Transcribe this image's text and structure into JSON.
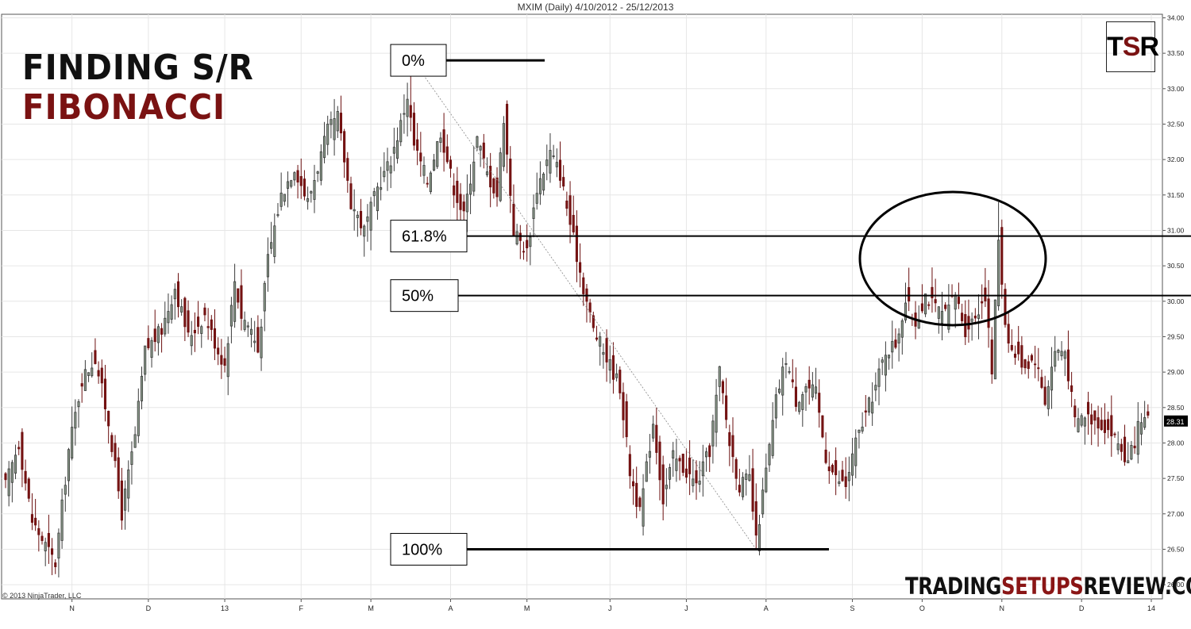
{
  "header": {
    "title": "MXIM (Daily)  4/10/2012 - 25/12/2013"
  },
  "overlay": {
    "title_line1": "FINDING S/R",
    "title_line2": "FIBONACCI",
    "logo": {
      "t": "T",
      "s": "S",
      "r": "R"
    },
    "brand": {
      "part1": "TRADING",
      "part2": "SETUPS",
      "part3": "REVIEW.COM"
    },
    "copyright": "© 2013 NinjaTrader, LLC"
  },
  "colors": {
    "up": "#3b3b3b",
    "up_fill": "#8a9a8a",
    "down": "#6b0f0f",
    "down_fill": "#7a1414",
    "grid": "#e6e6e6",
    "accent": "#7a1212"
  },
  "chart_data": {
    "type": "candlestick",
    "title": "MXIM (Daily)  4/10/2012 - 25/12/2013",
    "ylim": [
      25.8,
      34.05
    ],
    "y_ticks": [
      "26.00",
      "26.50",
      "27.00",
      "27.50",
      "28.00",
      "28.50",
      "29.00",
      "29.50",
      "30.00",
      "30.50",
      "31.00",
      "31.50",
      "32.00",
      "32.50",
      "33.00",
      "33.50",
      "34.00"
    ],
    "x_ticks": [
      {
        "label": "N",
        "idx": 20
      },
      {
        "label": "D",
        "idx": 43
      },
      {
        "label": "13",
        "idx": 66
      },
      {
        "label": "F",
        "idx": 89
      },
      {
        "label": "M",
        "idx": 110
      },
      {
        "label": "A",
        "idx": 134
      },
      {
        "label": "M",
        "idx": 157
      },
      {
        "label": "J",
        "idx": 182
      },
      {
        "label": "J",
        "idx": 205
      },
      {
        "label": "A",
        "idx": 229
      },
      {
        "label": "S",
        "idx": 255
      },
      {
        "label": "O",
        "idx": 276
      },
      {
        "label": "N",
        "idx": 300
      },
      {
        "label": "D",
        "idx": 324
      },
      {
        "label": "14",
        "idx": 345
      }
    ],
    "last_price": "28.31",
    "close_anchors": [
      [
        0,
        27.4
      ],
      [
        4,
        28.0
      ],
      [
        8,
        26.9
      ],
      [
        15,
        26.3
      ],
      [
        19,
        27.9
      ],
      [
        23,
        28.9
      ],
      [
        27,
        29.2
      ],
      [
        31,
        28.3
      ],
      [
        35,
        27.0
      ],
      [
        39,
        28.1
      ],
      [
        42,
        29.3
      ],
      [
        47,
        29.6
      ],
      [
        51,
        30.2
      ],
      [
        55,
        29.5
      ],
      [
        60,
        29.8
      ],
      [
        64,
        29.3
      ],
      [
        66,
        29.1
      ],
      [
        69,
        30.3
      ],
      [
        71,
        29.8
      ],
      [
        74,
        29.6
      ],
      [
        76,
        29.3
      ],
      [
        79,
        30.6
      ],
      [
        83,
        31.5
      ],
      [
        87,
        31.9
      ],
      [
        91,
        31.4
      ],
      [
        94,
        31.9
      ],
      [
        97,
        32.4
      ],
      [
        100,
        32.6
      ],
      [
        104,
        31.4
      ],
      [
        108,
        31.0
      ],
      [
        112,
        31.6
      ],
      [
        116,
        32.0
      ],
      [
        119,
        32.5
      ],
      [
        121,
        32.9
      ],
      [
        123,
        32.2
      ],
      [
        127,
        31.7
      ],
      [
        131,
        32.4
      ],
      [
        135,
        31.6
      ],
      [
        138,
        31.2
      ],
      [
        142,
        32.3
      ],
      [
        145,
        31.8
      ],
      [
        148,
        31.5
      ],
      [
        150,
        32.6
      ],
      [
        153,
        31.0
      ],
      [
        157,
        30.7
      ],
      [
        160,
        31.6
      ],
      [
        164,
        32.1
      ],
      [
        167,
        31.8
      ],
      [
        170,
        31.1
      ],
      [
        174,
        30.2
      ],
      [
        177,
        29.6
      ],
      [
        181,
        29.2
      ],
      [
        185,
        28.8
      ],
      [
        188,
        27.6
      ],
      [
        191,
        27.0
      ],
      [
        195,
        28.3
      ],
      [
        198,
        27.2
      ],
      [
        201,
        27.8
      ],
      [
        205,
        27.6
      ],
      [
        208,
        27.4
      ],
      [
        212,
        27.9
      ],
      [
        215,
        29.0
      ],
      [
        218,
        28.0
      ],
      [
        221,
        27.4
      ],
      [
        224,
        27.5
      ],
      [
        226,
        26.6
      ],
      [
        229,
        27.6
      ],
      [
        232,
        28.6
      ],
      [
        235,
        29.2
      ],
      [
        238,
        28.6
      ],
      [
        241,
        28.8
      ],
      [
        244,
        28.7
      ],
      [
        247,
        27.8
      ],
      [
        250,
        27.5
      ],
      [
        253,
        27.4
      ],
      [
        256,
        28.0
      ],
      [
        259,
        28.4
      ],
      [
        262,
        28.8
      ],
      [
        265,
        29.3
      ],
      [
        268,
        29.4
      ],
      [
        271,
        30.0
      ],
      [
        274,
        29.7
      ],
      [
        277,
        30.1
      ],
      [
        280,
        29.9
      ],
      [
        283,
        29.8
      ],
      [
        286,
        30.1
      ],
      [
        289,
        29.6
      ],
      [
        292,
        29.8
      ],
      [
        295,
        30.1
      ],
      [
        297,
        29.0
      ],
      [
        299,
        30.9
      ],
      [
        301,
        29.7
      ],
      [
        303,
        29.3
      ],
      [
        307,
        29.1
      ],
      [
        310,
        29.2
      ],
      [
        313,
        28.6
      ],
      [
        316,
        29.3
      ],
      [
        319,
        29.3
      ],
      [
        322,
        28.3
      ],
      [
        325,
        28.4
      ],
      [
        329,
        28.3
      ],
      [
        332,
        28.2
      ],
      [
        335,
        28.0
      ],
      [
        338,
        27.7
      ],
      [
        341,
        28.2
      ],
      [
        344,
        28.31
      ]
    ],
    "fib_levels": [
      {
        "label": "0%",
        "price": 33.4
      },
      {
        "label": "61.8%",
        "price": 30.92
      },
      {
        "label": "50%",
        "price": 30.08
      },
      {
        "label": "100%",
        "price": 26.5
      }
    ]
  }
}
